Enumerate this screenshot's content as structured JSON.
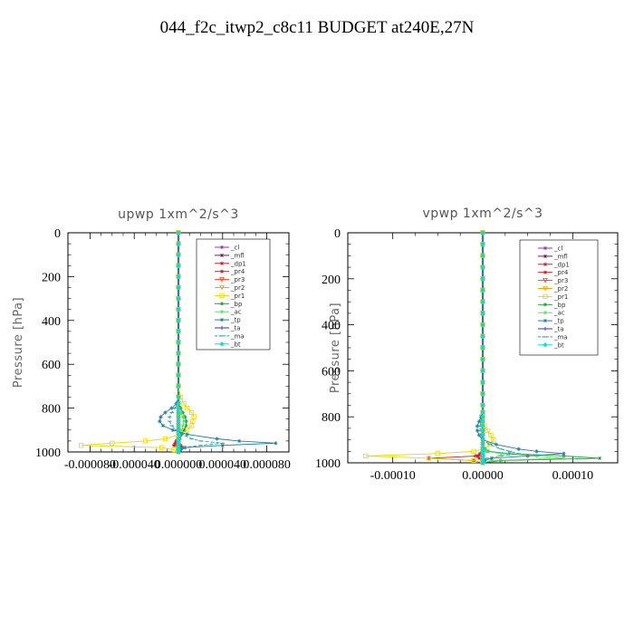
{
  "title": "044_f2c_itwp2_c8c11  BUDGET at240E,27N",
  "legend_entries": [
    "_cl",
    "_mfl",
    "_dp1",
    "_pr4",
    "_pr3",
    "_pr2",
    "_pr1",
    "_bp",
    "_ac",
    "_tp",
    "_ta",
    "_ma",
    "_bt"
  ],
  "series_colors": {
    "_cl": "#9b30b0",
    "_mfl": "#6a1a5a",
    "_dp1": "#c8202a",
    "_pr4": "#d02020",
    "_pr3": "#ff4020",
    "_pr2": "#ffa000",
    "_pr1": "#e8d800",
    "_bp": "#20a040",
    "_ac": "#60e060",
    "_tp": "#2080a0",
    "_ta": "#3030c0",
    "_ma": "#20a0c0",
    "_bt": "#00e0e0"
  },
  "chart_data": [
    {
      "type": "line",
      "title": "upwp   1xm^2/s^3",
      "xlabel": "",
      "ylabel": "Pressure [hPa]",
      "xlim": [
        -0.0001,
        0.0001
      ],
      "ylim": [
        1000,
        0
      ],
      "xticks": [
        -8e-05,
        -4e-05,
        0.0,
        4e-05,
        8e-05
      ],
      "xtick_labels": [
        "-0.000080",
        "-0.000040",
        "0.000000",
        "0.000040",
        "0.000080"
      ],
      "yticks": [
        0,
        200,
        400,
        600,
        800,
        1000
      ],
      "ytick_labels": [
        "0",
        "200",
        "400",
        "600",
        "800",
        "1000"
      ],
      "pressure": [
        0,
        50,
        100,
        150,
        200,
        250,
        300,
        350,
        400,
        450,
        500,
        550,
        600,
        650,
        700,
        750,
        780,
        800,
        820,
        840,
        860,
        880,
        900,
        920,
        940,
        950,
        960,
        970,
        980,
        990,
        1000
      ],
      "series": [
        {
          "name": "_cl",
          "values": [
            0,
            0,
            0,
            0,
            0,
            0,
            0,
            0,
            0,
            0,
            0,
            0,
            0,
            0,
            0,
            0,
            0,
            0,
            0,
            0,
            0,
            0,
            0,
            0,
            0,
            0,
            0,
            0,
            0,
            0,
            0
          ]
        },
        {
          "name": "_mfl",
          "values": [
            0,
            0,
            0,
            0,
            0,
            0,
            0,
            0,
            0,
            0,
            0,
            0,
            0,
            0,
            0,
            0,
            0,
            0,
            0,
            0,
            0,
            0,
            0,
            0,
            0,
            0,
            0,
            0,
            0,
            0,
            0
          ]
        },
        {
          "name": "_dp1",
          "values": [
            0,
            0,
            0,
            0,
            0,
            0,
            0,
            0,
            0,
            0,
            0,
            0,
            0,
            0,
            0,
            0,
            0,
            0,
            0,
            0,
            0,
            0,
            0,
            0,
            0,
            0,
            -2e-06,
            -4e-06,
            3e-06,
            2e-06,
            0
          ]
        },
        {
          "name": "_pr4",
          "values": [
            0,
            0,
            0,
            0,
            0,
            0,
            0,
            0,
            0,
            0,
            0,
            0,
            0,
            0,
            0,
            0,
            0,
            0,
            0,
            0,
            0,
            0,
            0,
            0,
            0,
            -2e-06,
            -3e-06,
            2e-06,
            4e-06,
            1e-06,
            0
          ]
        },
        {
          "name": "_pr3",
          "values": [
            0,
            0,
            0,
            0,
            0,
            0,
            0,
            0,
            0,
            0,
            0,
            0,
            0,
            0,
            0,
            0,
            0,
            0,
            0,
            0,
            0,
            0,
            0,
            0,
            0,
            0,
            0,
            0,
            0,
            0,
            0
          ]
        },
        {
          "name": "_pr2",
          "values": [
            0,
            0,
            0,
            0,
            0,
            0,
            0,
            0,
            0,
            0,
            0,
            0,
            0,
            0,
            0,
            0,
            0,
            0,
            0,
            0,
            0,
            0,
            0,
            0,
            0,
            0,
            0,
            0,
            0,
            0,
            0
          ]
        },
        {
          "name": "_pr1",
          "values": [
            0,
            0,
            0,
            0,
            0,
            0,
            0,
            0,
            0,
            0,
            0,
            0,
            0,
            0,
            0,
            2e-06,
            5e-06,
            8e-06,
            1.2e-05,
            1.4e-05,
            1.3e-05,
            1.2e-05,
            8e-06,
            1e-06,
            -1.2e-05,
            -3e-05,
            -6e-05,
            -8.8e-05,
            -1.5e-05,
            -4e-06,
            0
          ]
        },
        {
          "name": "_bp",
          "values": [
            0,
            0,
            0,
            0,
            0,
            0,
            0,
            0,
            0,
            0,
            0,
            0,
            0,
            0,
            0,
            0,
            0,
            2e-06,
            4e-06,
            6e-06,
            7e-06,
            7e-06,
            5e-06,
            3e-06,
            1e-06,
            0,
            0,
            0,
            0,
            0,
            0
          ]
        },
        {
          "name": "_ac",
          "values": [
            0,
            0,
            0,
            0,
            0,
            0,
            0,
            0,
            0,
            0,
            0,
            0,
            0,
            0,
            0,
            0,
            0,
            0,
            2e-06,
            4e-06,
            5e-06,
            4e-06,
            3e-06,
            1e-06,
            0,
            0,
            0,
            0,
            0,
            0,
            0
          ]
        },
        {
          "name": "_tp",
          "values": [
            0,
            0,
            0,
            0,
            0,
            0,
            0,
            0,
            0,
            0,
            0,
            0,
            0,
            0,
            0,
            0,
            -2e-06,
            -6e-06,
            -1.2e-05,
            -1.6e-05,
            -1.7e-05,
            -1.4e-05,
            -5e-06,
            8e-06,
            3.5e-05,
            5.5e-05,
            8.8e-05,
            4e-05,
            6e-06,
            2e-06,
            0
          ]
        },
        {
          "name": "_ta",
          "values": [
            0,
            0,
            0,
            0,
            0,
            0,
            0,
            0,
            0,
            0,
            0,
            0,
            0,
            0,
            0,
            0,
            0,
            0,
            0,
            0,
            0,
            0,
            0,
            0,
            0,
            0,
            0,
            0,
            0,
            0,
            0
          ]
        },
        {
          "name": "_ma",
          "values": [
            0,
            0,
            0,
            0,
            0,
            0,
            0,
            0,
            0,
            0,
            0,
            0,
            0,
            0,
            0,
            0,
            -1e-06,
            -3e-06,
            -6e-06,
            -8e-06,
            -8e-06,
            -6e-06,
            -2e-06,
            3e-06,
            1.2e-05,
            2e-05,
            4e-05,
            2e-05,
            3e-06,
            1e-06,
            0
          ]
        },
        {
          "name": "_bt",
          "values": [
            0,
            0,
            0,
            0,
            0,
            0,
            0,
            0,
            0,
            0,
            0,
            0,
            0,
            0,
            0,
            0,
            0,
            0,
            0,
            0,
            0,
            0,
            0,
            0,
            0,
            0,
            0,
            0,
            0,
            0,
            0
          ]
        }
      ]
    },
    {
      "type": "line",
      "title": "vpwp   1xm^2/s^3",
      "xlabel": "",
      "ylabel": "Pressure [hPa]",
      "xlim": [
        -0.00015,
        0.00015
      ],
      "ylim": [
        1000,
        0
      ],
      "xticks": [
        -0.0001,
        0.0,
        0.0001
      ],
      "xtick_labels": [
        "-0.00010",
        "0.00000",
        "0.00010"
      ],
      "yticks": [
        0,
        200,
        400,
        600,
        800,
        1000
      ],
      "ytick_labels": [
        "0",
        "200",
        "400",
        "600",
        "800",
        "1000"
      ],
      "pressure": [
        0,
        50,
        100,
        150,
        200,
        250,
        300,
        350,
        400,
        450,
        500,
        550,
        600,
        650,
        700,
        750,
        780,
        800,
        820,
        840,
        860,
        880,
        900,
        920,
        940,
        950,
        960,
        970,
        980,
        990,
        1000
      ],
      "series": [
        {
          "name": "_cl",
          "values": [
            0,
            0,
            0,
            0,
            0,
            0,
            0,
            0,
            0,
            0,
            0,
            0,
            0,
            0,
            0,
            0,
            0,
            0,
            0,
            0,
            0,
            0,
            0,
            0,
            0,
            0,
            0,
            0,
            0,
            0,
            0
          ]
        },
        {
          "name": "_mfl",
          "values": [
            0,
            0,
            0,
            0,
            0,
            0,
            0,
            0,
            0,
            0,
            0,
            0,
            0,
            0,
            0,
            0,
            0,
            0,
            0,
            0,
            0,
            0,
            0,
            0,
            0,
            0,
            0,
            0,
            0,
            0,
            0
          ]
        },
        {
          "name": "_dp1",
          "values": [
            0,
            0,
            0,
            0,
            0,
            0,
            0,
            0,
            0,
            0,
            0,
            0,
            0,
            0,
            0,
            0,
            0,
            0,
            0,
            0,
            0,
            0,
            0,
            0,
            0,
            0,
            0,
            -5e-06,
            -6e-05,
            -1e-05,
            0
          ]
        },
        {
          "name": "_pr4",
          "values": [
            0,
            0,
            0,
            0,
            0,
            0,
            0,
            0,
            0,
            0,
            0,
            0,
            0,
            0,
            0,
            0,
            0,
            0,
            0,
            0,
            0,
            0,
            0,
            0,
            0,
            0,
            -3e-06,
            -8e-06,
            -4e-06,
            2e-06,
            0
          ]
        },
        {
          "name": "_pr3",
          "values": [
            0,
            0,
            0,
            0,
            0,
            0,
            0,
            0,
            0,
            0,
            0,
            0,
            0,
            0,
            0,
            0,
            0,
            0,
            0,
            0,
            0,
            0,
            0,
            0,
            0,
            0,
            0,
            0,
            0,
            0,
            0
          ]
        },
        {
          "name": "_pr2",
          "values": [
            0,
            0,
            0,
            0,
            0,
            0,
            0,
            0,
            0,
            0,
            0,
            0,
            0,
            0,
            0,
            0,
            0,
            0,
            0,
            0,
            0,
            0,
            0,
            0,
            0,
            0,
            0,
            0,
            0,
            0,
            0
          ]
        },
        {
          "name": "_pr1",
          "values": [
            0,
            0,
            0,
            0,
            0,
            0,
            0,
            0,
            0,
            0,
            0,
            0,
            0,
            0,
            0,
            0,
            0,
            0,
            0,
            2e-06,
            5e-06,
            9e-06,
            1.2e-05,
            8e-06,
            2e-06,
            -1e-05,
            -5e-05,
            -0.00013,
            -6e-05,
            -1e-05,
            0
          ]
        },
        {
          "name": "_bp",
          "values": [
            0,
            0,
            0,
            0,
            0,
            0,
            0,
            0,
            0,
            0,
            0,
            0,
            0,
            0,
            0,
            0,
            0,
            0,
            0,
            0,
            0,
            0,
            0,
            0,
            2e-06,
            6e-06,
            3e-05,
            9e-05,
            0.00013,
            2e-05,
            0
          ]
        },
        {
          "name": "_ac",
          "values": [
            0,
            0,
            0,
            0,
            0,
            0,
            0,
            0,
            0,
            0,
            0,
            0,
            0,
            0,
            0,
            0,
            0,
            0,
            0,
            0,
            0,
            0,
            0,
            0,
            1e-06,
            4e-06,
            2e-05,
            6e-05,
            9e-05,
            1e-05,
            0
          ]
        },
        {
          "name": "_tp",
          "values": [
            0,
            0,
            0,
            0,
            0,
            0,
            0,
            0,
            0,
            0,
            0,
            0,
            0,
            0,
            0,
            0,
            0,
            -2e-06,
            -4e-06,
            -6e-06,
            -6e-06,
            -4e-06,
            0,
            1.5e-05,
            4e-05,
            6e-05,
            9e-05,
            5e-05,
            1e-05,
            2e-06,
            0
          ]
        },
        {
          "name": "_ta",
          "values": [
            0,
            0,
            0,
            0,
            0,
            0,
            0,
            0,
            0,
            0,
            0,
            0,
            0,
            0,
            0,
            0,
            0,
            0,
            0,
            0,
            0,
            0,
            0,
            0,
            0,
            0,
            0,
            0,
            0,
            0,
            0
          ]
        },
        {
          "name": "_ma",
          "values": [
            0,
            0,
            0,
            0,
            0,
            0,
            0,
            0,
            0,
            0,
            0,
            0,
            0,
            0,
            0,
            0,
            0,
            -1e-06,
            -2e-06,
            -3e-06,
            -3e-06,
            -2e-06,
            0,
            8e-06,
            2e-05,
            3e-05,
            4e-05,
            2e-05,
            5e-06,
            1e-06,
            0
          ]
        },
        {
          "name": "_bt",
          "values": [
            0,
            0,
            0,
            0,
            0,
            0,
            0,
            0,
            0,
            0,
            0,
            0,
            0,
            0,
            0,
            0,
            0,
            0,
            0,
            0,
            0,
            0,
            0,
            0,
            0,
            0,
            0,
            0,
            0,
            0,
            0
          ]
        }
      ]
    }
  ]
}
